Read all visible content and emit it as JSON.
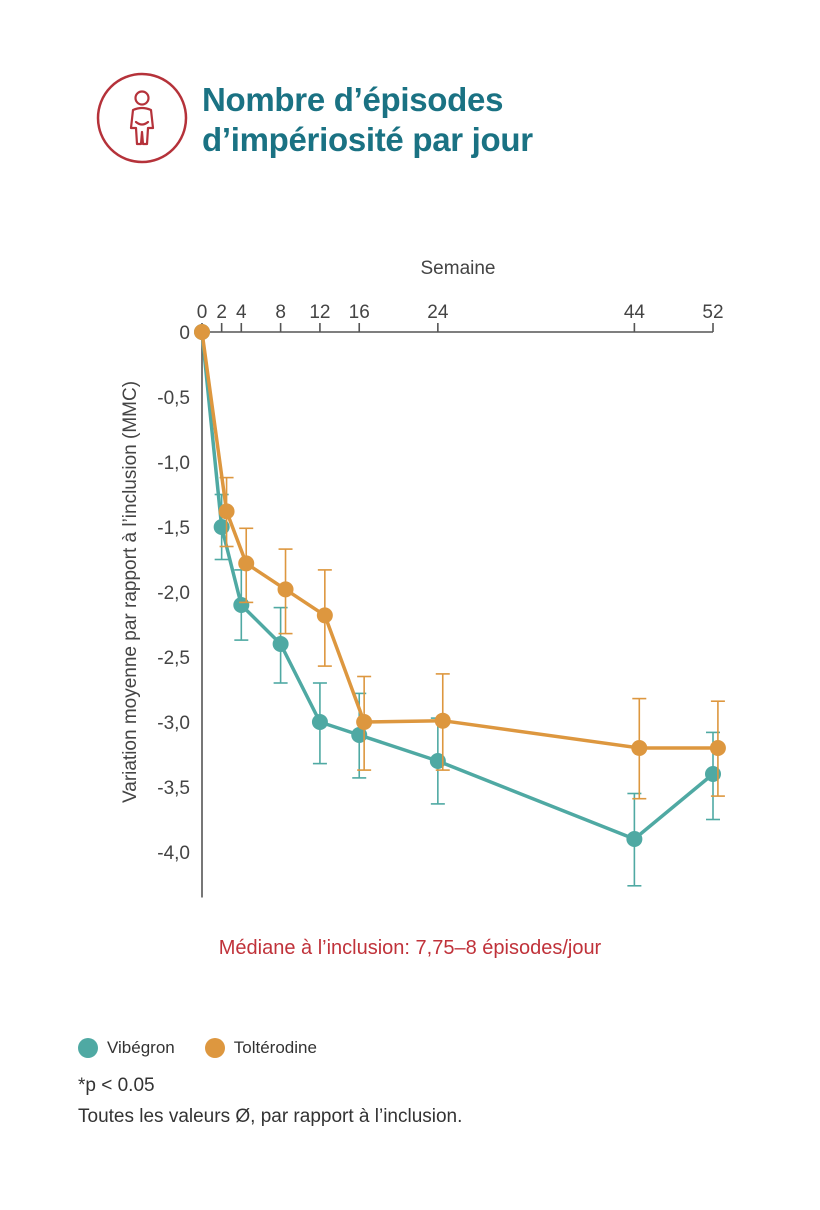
{
  "header": {
    "icon": "person-urgency-icon",
    "title_line1": "Nombre d’épisodes",
    "title_line2": "d’impériosité par jour"
  },
  "colors": {
    "title": "#1a7283",
    "icon": "#b5323a",
    "axis": "#555555",
    "note": "#c0323a",
    "vibegron": "#4fa9a3",
    "tolterodine": "#dd973f"
  },
  "chart_data": {
    "type": "line",
    "xlabel": "Semaine",
    "ylabel": "Variation moyenne par rapport à l’inclusion (MMC)",
    "x_axis_position": "top",
    "x_ticks": [
      0,
      2,
      4,
      8,
      12,
      16,
      24,
      44,
      52
    ],
    "x_tick_labels": [
      "0",
      "2",
      "4",
      "8",
      "12",
      "16",
      "24",
      "44",
      "52"
    ],
    "y_ticks": [
      0,
      -0.5,
      -1.0,
      -1.5,
      -2.0,
      -2.5,
      -3.0,
      -3.5,
      -4.0
    ],
    "y_tick_labels": [
      "0",
      "-0,5",
      "-1,0",
      "-1,5",
      "-2,0",
      "-2,5",
      "-3,0",
      "-3,5",
      "-4,0"
    ],
    "xlim": [
      0,
      52
    ],
    "ylim": [
      -4.35,
      0
    ],
    "series": [
      {
        "name": "Vibégron",
        "color": "#4fa9a3",
        "x": [
          0,
          2,
          4,
          8,
          12,
          16,
          24,
          44,
          52
        ],
        "y": [
          0,
          -1.5,
          -2.1,
          -2.4,
          -3.0,
          -3.1,
          -3.3,
          -3.9,
          -3.4
        ],
        "err_low": [
          0,
          -1.75,
          -2.37,
          -2.7,
          -3.32,
          -3.43,
          -3.63,
          -4.26,
          -3.75
        ],
        "err_high": [
          0,
          -1.25,
          -1.83,
          -2.12,
          -2.7,
          -2.78,
          -2.97,
          -3.55,
          -3.08
        ]
      },
      {
        "name": "Toltérodine",
        "color": "#dd973f",
        "x": [
          0,
          2.5,
          4.5,
          8.5,
          12.5,
          16.5,
          24.5,
          44.5,
          52.5
        ],
        "y": [
          0,
          -1.38,
          -1.78,
          -1.98,
          -2.18,
          -3.0,
          -2.99,
          -3.2,
          -3.2
        ],
        "err_low": [
          0,
          -1.65,
          -2.08,
          -2.32,
          -2.57,
          -3.37,
          -3.37,
          -3.59,
          -3.57
        ],
        "err_high": [
          0,
          -1.12,
          -1.51,
          -1.67,
          -1.83,
          -2.65,
          -2.63,
          -2.82,
          -2.84
        ]
      }
    ]
  },
  "note": "Médiane à l’inclusion: 7,75–8 épisodes/jour",
  "legend": {
    "vibegron": "Vibégron",
    "tolterodine": "Toltérodine"
  },
  "footnotes": {
    "significance": "*p < 0.05",
    "values": "Toutes les valeurs Ø, par rapport à l’inclusion."
  }
}
